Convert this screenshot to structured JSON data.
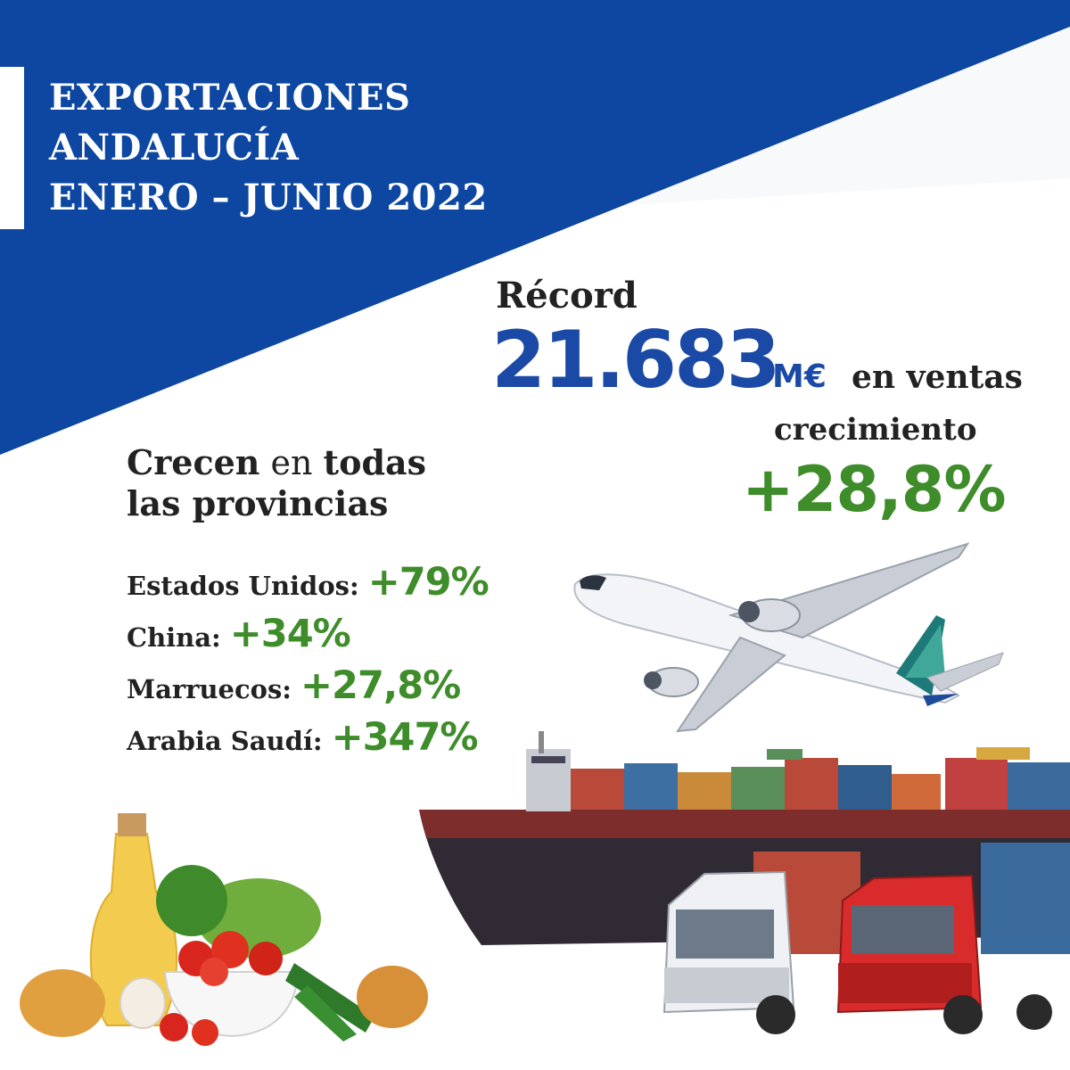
{
  "colors": {
    "brand_blue": "#0d47a1",
    "value_blue": "#1a4aa5",
    "growth_green": "#3e8c2a",
    "text_dark": "#222222"
  },
  "header": {
    "title_lines": [
      "EXPORTACIONES",
      "ANDALUCÍA",
      "ENERO – JUNIO 2022"
    ]
  },
  "record": {
    "label": "Récord",
    "value": "21.683",
    "unit": "M€",
    "suffix": "en ventas"
  },
  "growth": {
    "label": "crecimiento",
    "value": "+28,8%"
  },
  "provinces": {
    "word_bold_1": "Crecen",
    "word_light": "en",
    "word_bold_2": "todas",
    "line2": "las provincias"
  },
  "countries": [
    {
      "name": "Estados Unidos:",
      "value": "+79%"
    },
    {
      "name": "China:",
      "value": "+34%"
    },
    {
      "name": "Marruecos:",
      "value": "+27,8%"
    },
    {
      "name": "Arabia Saudí:",
      "value": "+347%"
    }
  ],
  "illustrations": {
    "airplane": "airplane-icon",
    "ship": "container-ship-icon",
    "trucks": "truck-icon",
    "food": "vegetables-oil-icon"
  }
}
